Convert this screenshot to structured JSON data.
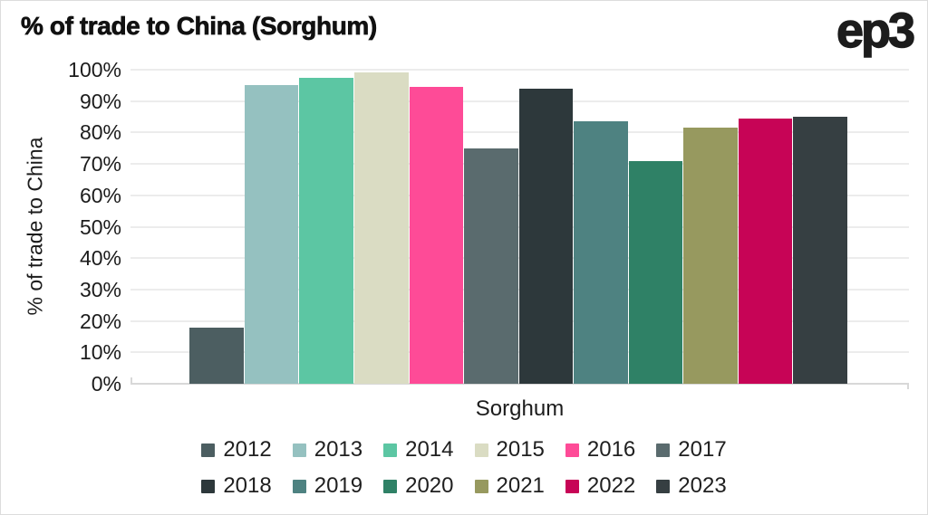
{
  "header": {
    "title": "% of trade to China (Sorghum)",
    "logo": "ep3"
  },
  "chart_data": {
    "type": "bar",
    "title": "% of trade to China (Sorghum)",
    "xlabel": "Sorghum",
    "ylabel": "% of trade to China",
    "ylim": [
      0,
      100
    ],
    "y_tick_step": 10,
    "y_tick_labels": [
      "0%",
      "10%",
      "20%",
      "30%",
      "40%",
      "50%",
      "60%",
      "70%",
      "80%",
      "90%",
      "100%"
    ],
    "grid": true,
    "legend_position": "bottom",
    "legend_items_per_row": 6,
    "categories": [
      "2012",
      "2013",
      "2014",
      "2015",
      "2016",
      "2017",
      "2018",
      "2019",
      "2020",
      "2021",
      "2022",
      "2023"
    ],
    "values": [
      18,
      95,
      97.5,
      99,
      94.5,
      75,
      94,
      83.5,
      71,
      81.5,
      84.5,
      85
    ],
    "colors": [
      "#4c5e61",
      "#95c1c0",
      "#5cc6a3",
      "#dadcc3",
      "#fe4b97",
      "#5a6b6e",
      "#2d383b",
      "#4e8281",
      "#2f8166",
      "#97995f",
      "#c70456",
      "#363f42"
    ]
  },
  "style_colors": {
    "background": "#ffffff",
    "grid": "#ececec",
    "axis": "#d8d8d8",
    "text": "#1a1a1a"
  }
}
